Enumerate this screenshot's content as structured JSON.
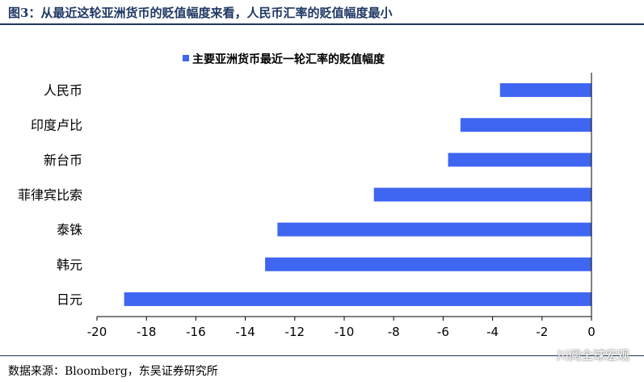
{
  "title": "图3：从最近这轮亚洲货币的贬值幅度来看，人民币汇率的贬值幅度最小",
  "source": "数据来源：Bloomberg，东吴证券研究所",
  "watermark": "川阅全球宏观",
  "colors": {
    "bar": "#3f66f0",
    "title": "#1f3864",
    "axis": "#000000"
  },
  "chart_data": {
    "type": "bar",
    "orientation": "horizontal",
    "categories": [
      "人民币",
      "印度卢比",
      "新台币",
      "菲律宾比索",
      "泰铢",
      "韩元",
      "日元"
    ],
    "series": [
      {
        "name": "主要亚洲货币最近一轮汇率的贬值幅度",
        "values": [
          -3.7,
          -5.3,
          -5.8,
          -8.8,
          -12.7,
          -13.2,
          -18.9
        ]
      }
    ],
    "xlim": [
      -20,
      0
    ],
    "xticks": [
      -20,
      -18,
      -16,
      -14,
      -12,
      -10,
      -8,
      -6,
      -4,
      -2,
      0
    ],
    "legend_position": "top",
    "grid": false
  }
}
